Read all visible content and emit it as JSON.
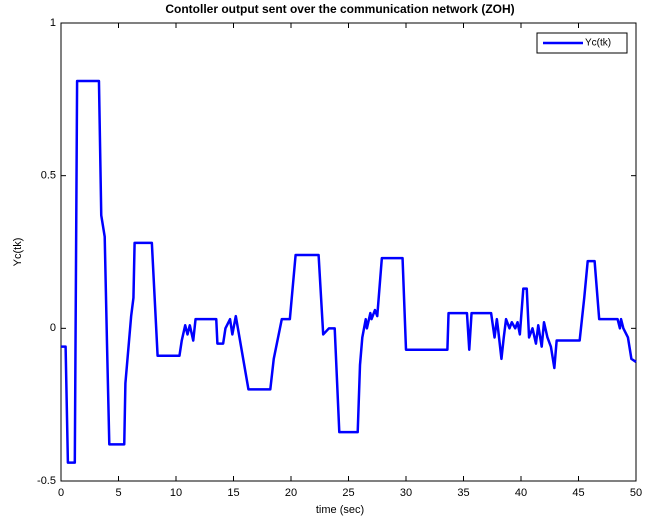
{
  "chart_data": {
    "type": "line",
    "title": "Contoller output sent over the communication network (ZOH)",
    "xlabel": "time (sec)",
    "ylabel": "Yc(tk)",
    "x": [
      0,
      0.4,
      0.6,
      1.2,
      1.4,
      3.3,
      3.5,
      3.8,
      4.0,
      4.2,
      5.5,
      5.6,
      6.1,
      6.3,
      6.4,
      7.9,
      8.4,
      10.3,
      10.5,
      10.8,
      11.0,
      11.2,
      11.5,
      11.7,
      13.5,
      13.6,
      14.1,
      14.3,
      14.7,
      14.9,
      15.2,
      16.3,
      18.2,
      18.5,
      19.2,
      19.9,
      20.4,
      22.4,
      22.8,
      23.3,
      23.8,
      24.2,
      25.8,
      26.0,
      26.2,
      26.5,
      26.6,
      26.9,
      27.0,
      27.3,
      27.5,
      27.9,
      29.7,
      30.0,
      33.6,
      33.7,
      35.3,
      35.5,
      35.7,
      37.4,
      37.7,
      37.9,
      38.0,
      38.3,
      38.5,
      38.7,
      39.0,
      39.2,
      39.5,
      39.7,
      39.9,
      40.2,
      40.5,
      40.7,
      41.0,
      41.3,
      41.5,
      41.8,
      42.0,
      42.3,
      42.6,
      42.9,
      43.1,
      45.1,
      45.3,
      45.5,
      45.8,
      46.4,
      46.8,
      48.4,
      48.6,
      48.7,
      48.9,
      49.3,
      49.6,
      50
    ],
    "series": [
      {
        "name": "Yc(tk)",
        "color": "#0000ff",
        "values": [
          -0.06,
          -0.06,
          -0.44,
          -0.44,
          0.81,
          0.81,
          0.37,
          0.3,
          -0.05,
          -0.38,
          -0.38,
          -0.18,
          0.04,
          0.1,
          0.28,
          0.28,
          -0.09,
          -0.09,
          -0.04,
          0.01,
          -0.02,
          0.01,
          -0.04,
          0.03,
          0.03,
          -0.05,
          -0.05,
          0.0,
          0.03,
          -0.02,
          0.04,
          -0.2,
          -0.2,
          -0.1,
          0.03,
          0.03,
          0.24,
          0.24,
          -0.02,
          0.0,
          0.0,
          -0.34,
          -0.34,
          -0.12,
          -0.03,
          0.03,
          0.0,
          0.05,
          0.03,
          0.06,
          0.04,
          0.23,
          0.23,
          -0.07,
          -0.07,
          0.05,
          0.05,
          -0.07,
          0.05,
          0.05,
          -0.03,
          0.03,
          0.0,
          -0.1,
          -0.03,
          0.03,
          0.0,
          0.02,
          0.0,
          0.02,
          -0.02,
          0.13,
          0.13,
          -0.03,
          0.0,
          -0.05,
          0.01,
          -0.06,
          0.02,
          -0.03,
          -0.06,
          -0.13,
          -0.04,
          -0.04,
          0.03,
          0.1,
          0.22,
          0.22,
          0.03,
          0.03,
          0.0,
          0.03,
          0.0,
          -0.03,
          -0.1,
          -0.11
        ]
      }
    ],
    "xlim": [
      0,
      50
    ],
    "xticks": [
      0,
      5,
      10,
      15,
      20,
      25,
      30,
      35,
      40,
      45,
      50
    ],
    "ylim": [
      -0.5,
      1
    ],
    "yticks": [
      -0.5,
      0,
      0.5,
      1
    ],
    "legend": "upper right",
    "grid": false
  }
}
